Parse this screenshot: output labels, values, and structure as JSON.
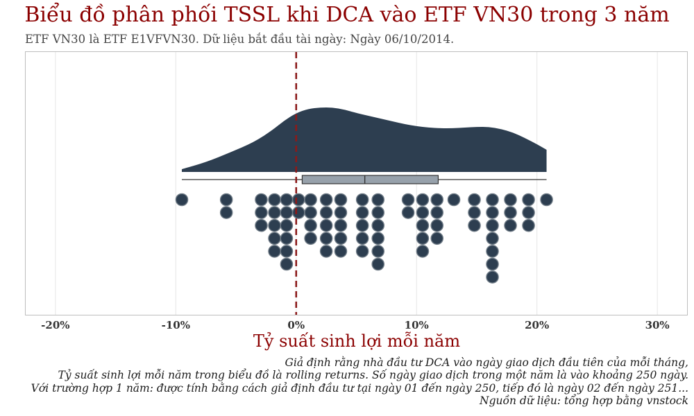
{
  "title": "Biểu đồ phân phối TSSL khi DCA vào ETF VN30 trong 3 năm",
  "subtitle": "ETF VN30 là ETF E1VFVN30.  Dữ liệu bắt đầu tài ngày: Ngày 06/10/2014.",
  "notes": [
    "Giả định rằng nhà đầu tư DCA vào ngày giao dịch đầu tiên của mỗi tháng,",
    "Tỷ suất sinh lợi mỗi năm trong biểu đồ là rolling returns. Số ngày giao dịch trong một năm là vào khoảng 250 ngày.",
    "Với trường hợp 1 năm: được tính bằng cách giả định đầu tư tại ngày 01 đến ngày 250, tiếp đó là ngày 02 đến ngày 251...",
    "Nguồn dữ liệu: tổng hợp bằng vnstock"
  ],
  "chart_data": {
    "type": "raincloud",
    "xlabel": "Tỷ suất sinh lợi mỗi năm",
    "xlim": [
      -22.5,
      32.5
    ],
    "xticks": [
      -20,
      -10,
      0,
      10,
      20,
      30
    ],
    "xtick_labels": [
      "-20%",
      "-10%",
      "0%",
      "10%",
      "20%",
      "30%"
    ],
    "grid": "vertical",
    "reference_line": {
      "x": 0,
      "style": "dashed",
      "color": "#8b1a1a"
    },
    "density": {
      "x": [
        -9.5,
        -7.5,
        -5.5,
        -3.5,
        -2,
        -1,
        0,
        1,
        2,
        3,
        4,
        5,
        6,
        7,
        8,
        9,
        10,
        11,
        12,
        13,
        14,
        15,
        16,
        17,
        18,
        19,
        20,
        20.8
      ],
      "y": [
        0.04,
        0.14,
        0.28,
        0.43,
        0.6,
        0.74,
        0.85,
        0.91,
        0.93,
        0.93,
        0.9,
        0.85,
        0.81,
        0.77,
        0.73,
        0.69,
        0.66,
        0.64,
        0.63,
        0.63,
        0.64,
        0.65,
        0.65,
        0.62,
        0.57,
        0.49,
        0.4,
        0.32
      ]
    },
    "boxplot": {
      "whisker_low": -9.5,
      "q1": 0.5,
      "median": 5.7,
      "q3": 11.8,
      "whisker_high": 20.8
    },
    "dots": [
      {
        "x": -9.5,
        "count": 1
      },
      {
        "x": -5.8,
        "count": 2
      },
      {
        "x": -2.9,
        "count": 3
      },
      {
        "x": -1.8,
        "count": 5
      },
      {
        "x": -0.8,
        "count": 6
      },
      {
        "x": 0.2,
        "count": 2
      },
      {
        "x": 1.2,
        "count": 4
      },
      {
        "x": 2.5,
        "count": 5
      },
      {
        "x": 3.7,
        "count": 5
      },
      {
        "x": 5.5,
        "count": 5
      },
      {
        "x": 6.8,
        "count": 6
      },
      {
        "x": 9.3,
        "count": 2
      },
      {
        "x": 10.5,
        "count": 5
      },
      {
        "x": 11.7,
        "count": 4
      },
      {
        "x": 13.1,
        "count": 1
      },
      {
        "x": 14.8,
        "count": 3
      },
      {
        "x": 16.3,
        "count": 7
      },
      {
        "x": 17.8,
        "count": 3
      },
      {
        "x": 19.3,
        "count": 3
      },
      {
        "x": 20.8,
        "count": 1
      }
    ]
  }
}
